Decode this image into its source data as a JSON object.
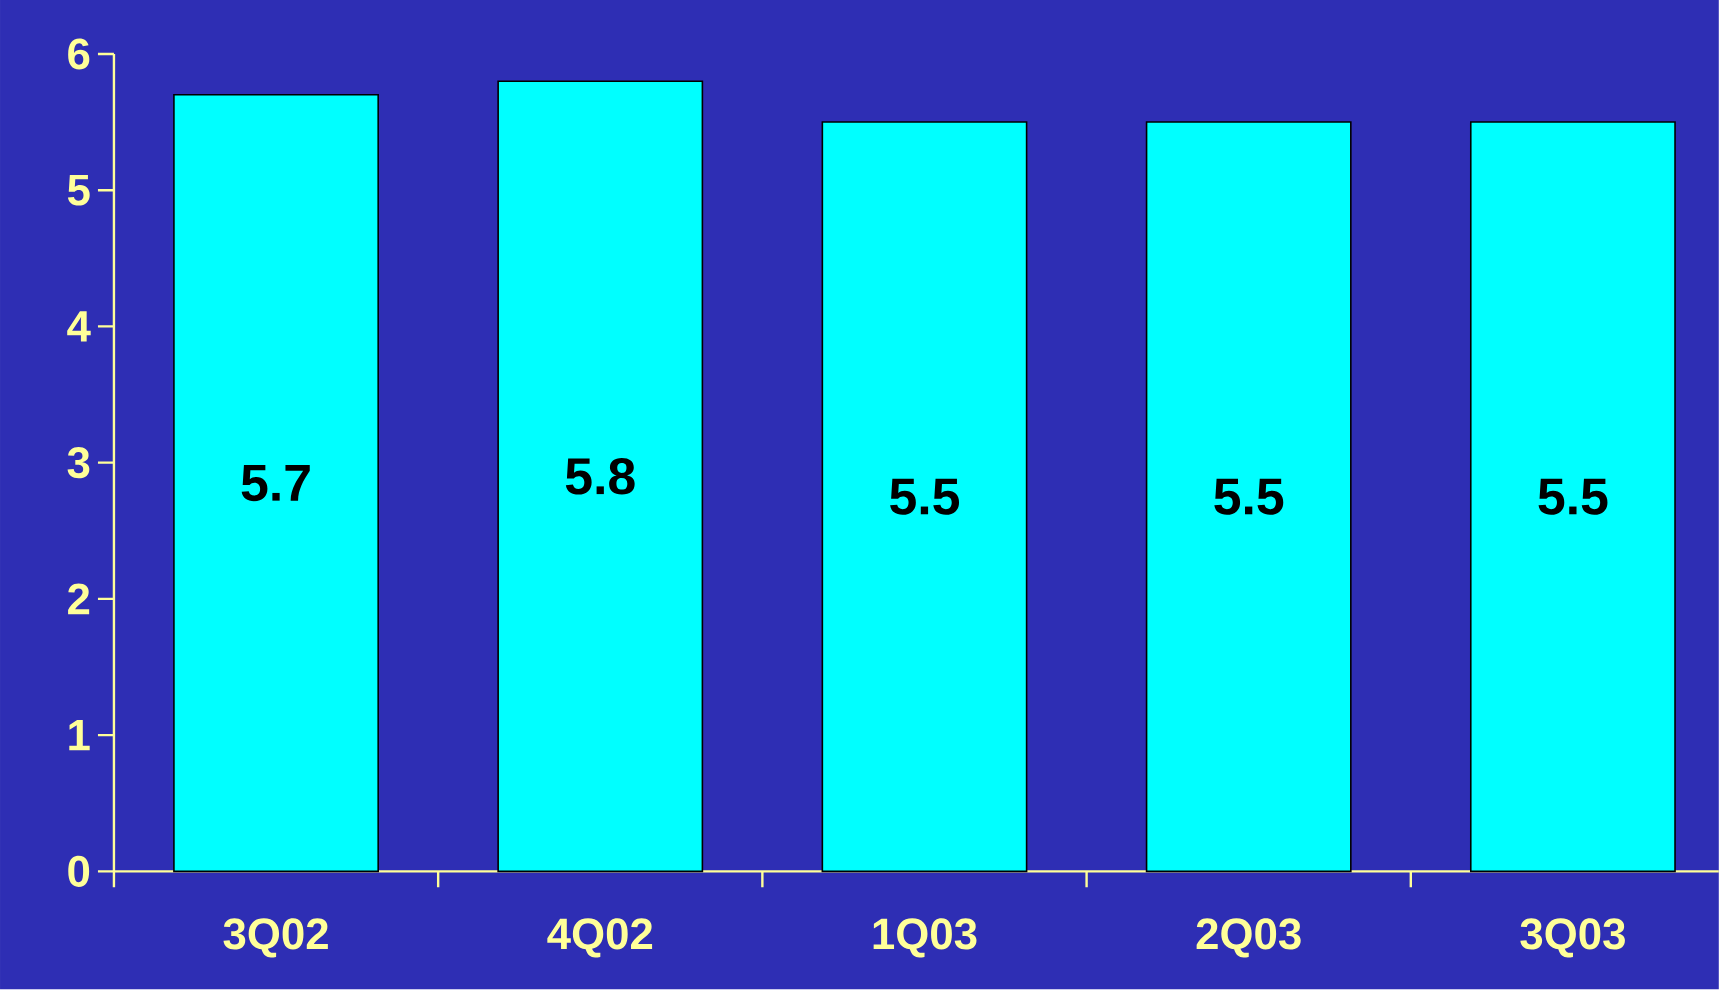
{
  "chart_data": {
    "type": "bar",
    "categories": [
      "3Q02",
      "4Q02",
      "1Q03",
      "2Q03",
      "3Q03"
    ],
    "values": [
      5.7,
      5.8,
      5.5,
      5.5,
      5.5
    ],
    "color": "#00ffff",
    "ylim": [
      0,
      6
    ],
    "yticks": [
      0,
      1,
      2,
      3,
      4,
      5,
      6
    ],
    "data_labels": true
  }
}
